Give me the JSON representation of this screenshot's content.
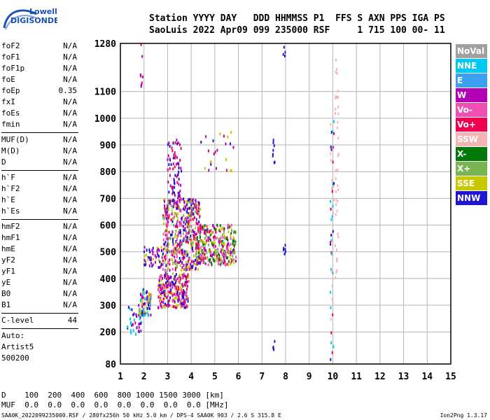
{
  "logo": {
    "line1": "Lowell",
    "line2": "DIGISONDE"
  },
  "header": {
    "row1": "Station YYYY DAY   DDD HHMMSS P1  FFS S AXN PPS IGA PS",
    "row2": "SaoLuis 2022 Apr09 099 235000 RSF     1 715 100 00- 11"
  },
  "params_group1": [
    {
      "name": "foF2",
      "value": "N/A"
    },
    {
      "name": "foF1",
      "value": "N/A"
    },
    {
      "name": "foF1p",
      "value": "N/A"
    },
    {
      "name": "foE",
      "value": "N/A"
    },
    {
      "name": "foEp",
      "value": "0.35"
    },
    {
      "name": "fxI",
      "value": "N/A"
    },
    {
      "name": "foEs",
      "value": "N/A"
    },
    {
      "name": "fmin",
      "value": "N/A"
    }
  ],
  "params_group2": [
    {
      "name": "MUF(D)",
      "value": "N/A"
    },
    {
      "name": "M(D)",
      "value": "N/A"
    },
    {
      "name": "D",
      "value": "N/A"
    }
  ],
  "params_group3": [
    {
      "name": "h`F",
      "value": "N/A"
    },
    {
      "name": "h`F2",
      "value": "N/A"
    },
    {
      "name": "h`E",
      "value": "N/A"
    },
    {
      "name": "h`Es",
      "value": "N/A"
    }
  ],
  "params_group4": [
    {
      "name": "hmF2",
      "value": "N/A"
    },
    {
      "name": "hmF1",
      "value": "N/A"
    },
    {
      "name": "hmE",
      "value": "N/A"
    },
    {
      "name": "yF2",
      "value": "N/A"
    },
    {
      "name": "yF1",
      "value": "N/A"
    },
    {
      "name": "yE",
      "value": "N/A"
    },
    {
      "name": "B0",
      "value": "N/A"
    },
    {
      "name": "B1",
      "value": "N/A"
    }
  ],
  "params_group5": [
    {
      "name": "C-level",
      "value": "44"
    }
  ],
  "auto_lines": [
    "Auto:",
    "Artist5",
    "500200"
  ],
  "legend": [
    {
      "label": "NoVal",
      "color": "#a0a0a0"
    },
    {
      "label": "NNE",
      "color": "#00c8f0"
    },
    {
      "label": "E",
      "color": "#3ca0f0"
    },
    {
      "label": "W",
      "color": "#b400b4"
    },
    {
      "label": "Vo-",
      "color": "#f050b4"
    },
    {
      "label": "Vo+",
      "color": "#f00050"
    },
    {
      "label": "SSW",
      "color": "#f4b4b4"
    },
    {
      "label": "X-",
      "color": "#00780a"
    },
    {
      "label": "X+",
      "color": "#78b450"
    },
    {
      "label": "SSE",
      "color": "#c8c800"
    },
    {
      "label": "NNW",
      "color": "#1e14d2"
    }
  ],
  "d_table": {
    "row1": "D    100  200  400  600  800 1000 1500 3000 [km]",
    "row2": "MUF  0.0  0.0  0.0  0.0  0.0  0.0  0.0  0.0 [MHz]"
  },
  "footer": {
    "left": "SAA0K_2022099235000.RSF / 280fx256h 50 kHz 5.0 km / DPS-4 SAA0K 903 / 2.6 S 315.8 E",
    "right": "Ion2Png 1.3.17"
  },
  "chart_data": {
    "type": "scatter",
    "xlim": [
      1,
      15
    ],
    "ylim": [
      80,
      1280
    ],
    "x_ticks": [
      1,
      2,
      3,
      4,
      5,
      6,
      7,
      8,
      9,
      10,
      11,
      12,
      13,
      14,
      15
    ],
    "y_ticks": [
      80,
      200,
      300,
      400,
      500,
      600,
      700,
      800,
      900,
      1000,
      1100,
      1280
    ],
    "grid": true,
    "clusters": [
      {
        "x": [
          1.3,
          1.9
        ],
        "y": [
          180,
          300
        ],
        "n": 40,
        "colors": [
          "#1e14d2",
          "#b400b4",
          "#00c8f0"
        ]
      },
      {
        "x": [
          1.8,
          2.3
        ],
        "y": [
          260,
          360
        ],
        "n": 80,
        "colors": [
          "#1e14d2",
          "#b400b4",
          "#00c8f0",
          "#c8c800"
        ]
      },
      {
        "x": [
          2.0,
          2.8
        ],
        "y": [
          440,
          520
        ],
        "n": 50,
        "colors": [
          "#1e14d2",
          "#b400b4",
          "#c8c800"
        ]
      },
      {
        "x": [
          2.6,
          3.9
        ],
        "y": [
          290,
          420
        ],
        "n": 260,
        "colors": [
          "#b400b4",
          "#f050b4",
          "#f00050",
          "#1e14d2",
          "#c8c800"
        ]
      },
      {
        "x": [
          2.8,
          4.4
        ],
        "y": [
          430,
          700
        ],
        "n": 520,
        "colors": [
          "#b400b4",
          "#f050b4",
          "#f00050",
          "#1e14d2",
          "#c8c800",
          "#78b450"
        ]
      },
      {
        "x": [
          3.0,
          3.6
        ],
        "y": [
          700,
          920
        ],
        "n": 70,
        "colors": [
          "#b400b4",
          "#f00050",
          "#1e14d2"
        ]
      },
      {
        "x": [
          4.2,
          5.9
        ],
        "y": [
          450,
          600
        ],
        "n": 320,
        "colors": [
          "#b400b4",
          "#f050b4",
          "#f00050",
          "#c8c800",
          "#78b450",
          "#00780a"
        ]
      },
      {
        "x": [
          4.4,
          5.8
        ],
        "y": [
          800,
          960
        ],
        "n": 25,
        "colors": [
          "#c8c800",
          "#f00050",
          "#1e14d2",
          "#b400b4"
        ]
      },
      {
        "x": [
          7.45,
          7.55
        ],
        "y": [
          830,
          950
        ],
        "n": 8,
        "colors": [
          "#1e14d2"
        ]
      },
      {
        "x": [
          7.45,
          7.55
        ],
        "y": [
          130,
          180
        ],
        "n": 4,
        "colors": [
          "#1e14d2"
        ]
      },
      {
        "x": [
          7.9,
          8.0
        ],
        "y": [
          480,
          540
        ],
        "n": 6,
        "colors": [
          "#1e14d2"
        ]
      },
      {
        "x": [
          7.9,
          8.0
        ],
        "y": [
          1230,
          1270
        ],
        "n": 4,
        "colors": [
          "#1e14d2"
        ]
      },
      {
        "x": [
          9.9,
          10.05
        ],
        "y": [
          80,
          1000
        ],
        "n": 50,
        "colors": [
          "#f4b4b4",
          "#00c8f0",
          "#1e14d2",
          "#f00050"
        ]
      },
      {
        "x": [
          10.1,
          10.25
        ],
        "y": [
          400,
          1230
        ],
        "n": 40,
        "colors": [
          "#f4b4b4"
        ]
      },
      {
        "x": [
          1.85,
          1.95
        ],
        "y": [
          1100,
          1280
        ],
        "n": 8,
        "colors": [
          "#f00050",
          "#b400b4"
        ]
      }
    ]
  }
}
